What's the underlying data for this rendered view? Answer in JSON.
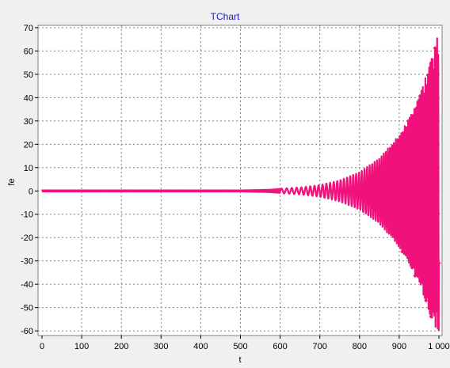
{
  "chart_data": {
    "type": "line",
    "title": "TChart",
    "xlabel": "t",
    "ylabel": "fe",
    "xlim": [
      0,
      1000
    ],
    "ylim": [
      -62,
      71
    ],
    "grid": true,
    "series_color": "#f0127a",
    "x_ticks": [
      0,
      100,
      200,
      300,
      400,
      500,
      600,
      700,
      800,
      900,
      1000
    ],
    "x_tick_labels": [
      "0",
      "100",
      "200",
      "300",
      "400",
      "500",
      "600",
      "700",
      "800",
      "900",
      "1 000"
    ],
    "y_ticks": [
      -60,
      -50,
      -40,
      -30,
      -20,
      -10,
      0,
      10,
      20,
      30,
      40,
      50,
      60,
      70
    ],
    "y_tick_labels": [
      "-60",
      "-50",
      "-40",
      "-30",
      "-20",
      "-10",
      "0",
      "10",
      "20",
      "30",
      "40",
      "50",
      "60",
      "70"
    ],
    "series": [
      {
        "x": [
          0,
          100,
          200,
          300,
          400,
          500,
          575,
          600,
          650,
          700,
          750,
          800,
          850,
          900,
          925,
          950,
          975,
          990,
          1000
        ],
        "upper_envelope": [
          0.3,
          0.3,
          0.3,
          0.3,
          0.3,
          0.3,
          0.6,
          1,
          1.5,
          2.5,
          4.5,
          8,
          14,
          24,
          31,
          40,
          53,
          62,
          70
        ],
        "lower_envelope": [
          -0.3,
          -0.3,
          -0.3,
          -0.3,
          -0.3,
          -0.3,
          -0.6,
          -1,
          -1.5,
          -2.5,
          -4.5,
          -8,
          -14,
          -24,
          -31,
          -40,
          -52,
          -58,
          -61
        ]
      }
    ]
  }
}
